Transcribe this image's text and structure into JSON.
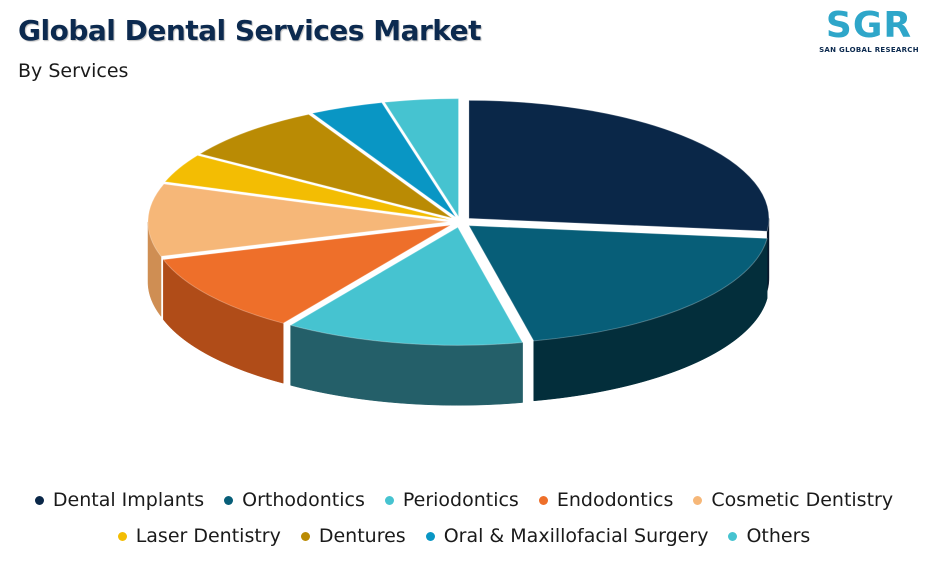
{
  "header": {
    "title": "Global Dental Services Market",
    "subtitle": "By Services"
  },
  "logo": {
    "letters": "SGR",
    "name": "SAN GLOBAL RESEARCH"
  },
  "chart_data": {
    "type": "pie",
    "style": "3d-exploded",
    "title": "Global Dental Services Market",
    "subtitle": "By Services",
    "legend_position": "bottom",
    "slices": [
      {
        "name": "Dental Implants",
        "value": 27,
        "color": "#0a2748",
        "dark": "#041326"
      },
      {
        "name": "Orthodontics",
        "value": 20,
        "color": "#075e78",
        "dark": "#032e3b"
      },
      {
        "name": "Periodontics",
        "value": 13,
        "color": "#46c3d0",
        "dark": "#245f69"
      },
      {
        "name": "Endodontics",
        "value": 11,
        "color": "#ee6f2a",
        "dark": "#b04c18"
      },
      {
        "name": "Cosmetic Dentistry",
        "value": 10,
        "color": "#f6b778",
        "dark": "#cf8e53"
      },
      {
        "name": "Laser Dentistry",
        "value": 4,
        "color": "#f3bd03",
        "dark": "#b08a00"
      },
      {
        "name": "Dentures",
        "value": 8,
        "color": "#ba8b04",
        "dark": "#7d5d02"
      },
      {
        "name": "Oral & Maxillofacial Surgery",
        "value": 4,
        "color": "#0996c4",
        "dark": "#056887"
      },
      {
        "name": "Others",
        "value": 4,
        "color": "#46c3d0",
        "dark": "#2b8b96"
      }
    ]
  }
}
